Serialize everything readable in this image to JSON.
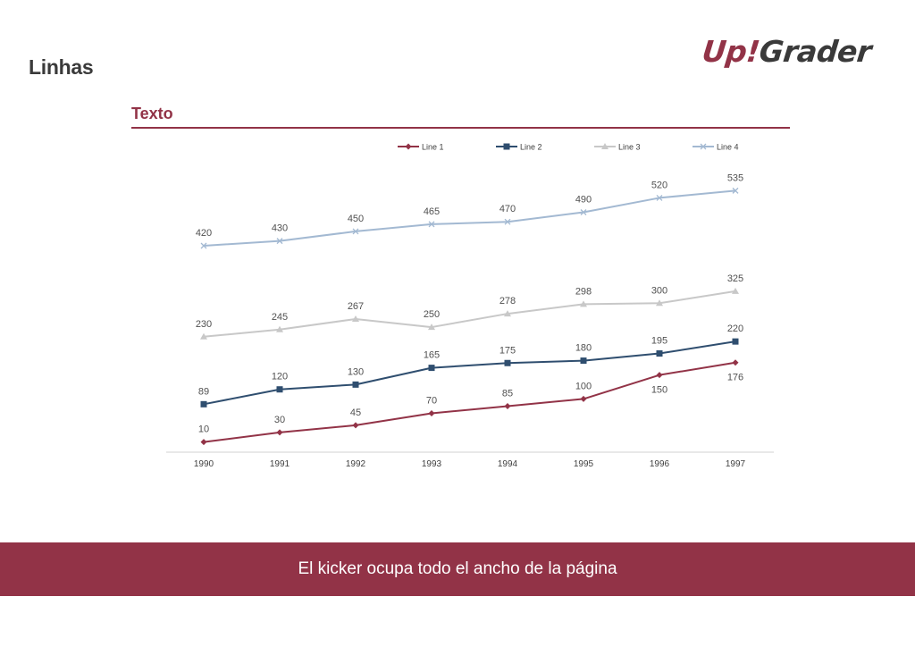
{
  "header": {
    "title": "Linhas",
    "logo_part1": "Up!",
    "logo_part2": "Grader"
  },
  "section": {
    "title": "Texto"
  },
  "footer": {
    "text": "El kicker ocupa todo el ancho de la página"
  },
  "colors": {
    "brand": "#923347",
    "line1": "#923347",
    "line2": "#2f4e6f",
    "line3": "#c8c8c8",
    "line4": "#a3b9d2"
  },
  "chart_data": {
    "type": "line",
    "title": "",
    "xlabel": "",
    "ylabel": "",
    "categories": [
      "1990",
      "1991",
      "1992",
      "1993",
      "1994",
      "1995",
      "1996",
      "1997"
    ],
    "series": [
      {
        "name": "Line 1",
        "values": [
          10,
          30,
          45,
          70,
          85,
          100,
          150,
          176
        ],
        "color": "#923347",
        "marker": "diamond"
      },
      {
        "name": "Line 2",
        "values": [
          89,
          120,
          130,
          165,
          175,
          180,
          195,
          220
        ],
        "color": "#2f4e6f",
        "marker": "square"
      },
      {
        "name": "Line 3",
        "values": [
          230,
          245,
          267,
          250,
          278,
          298,
          300,
          325
        ],
        "color": "#c8c8c8",
        "marker": "triangle"
      },
      {
        "name": "Line 4",
        "values": [
          420,
          430,
          450,
          465,
          470,
          490,
          520,
          535
        ],
        "color": "#a3b9d2",
        "marker": "x"
      }
    ],
    "ylim": [
      0,
      560
    ],
    "grid": false,
    "legend_position": "top",
    "data_labels": true
  }
}
